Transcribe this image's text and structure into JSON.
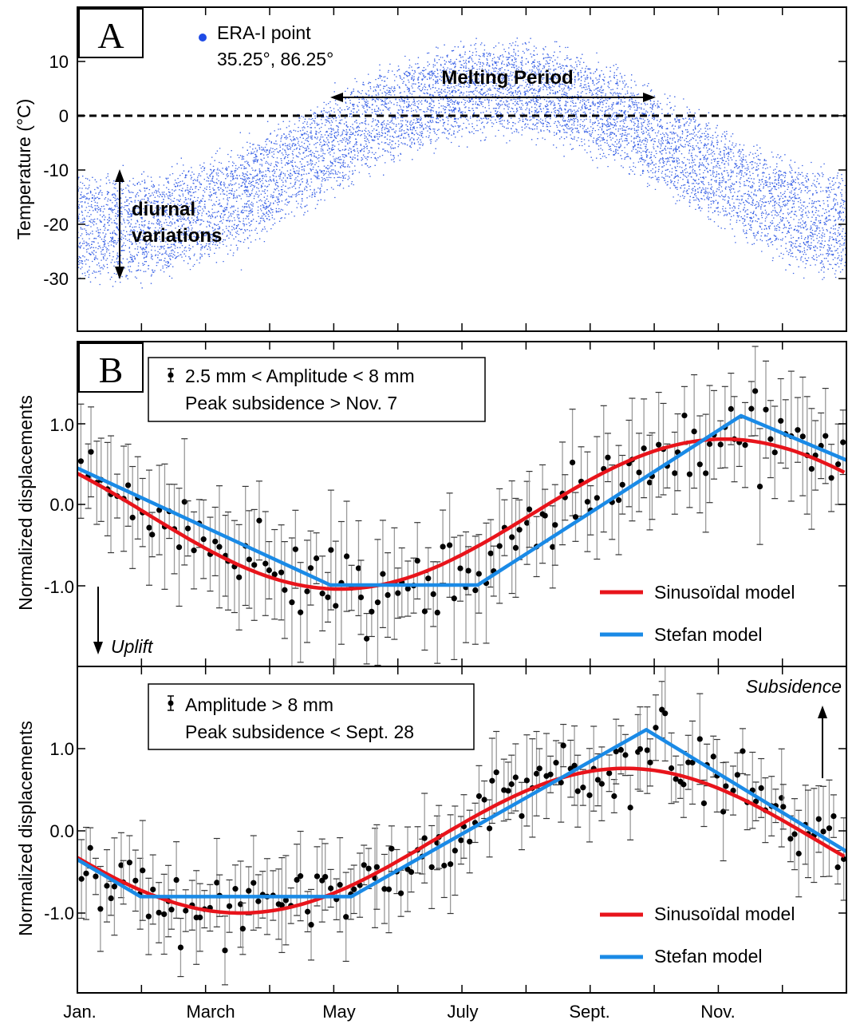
{
  "colors": {
    "scatter": "#3b63e6",
    "sinusoidal": "#e8141b",
    "stefan": "#1a8ae6",
    "errorbar": "#9a9a9a",
    "point": "#000000"
  },
  "months": [
    "Jan.",
    "March",
    "May",
    "July",
    "Sept.",
    "Nov."
  ],
  "panelA": {
    "letter": "A",
    "ylabel": "Temperature (°C)",
    "yticks": [
      "10",
      "0",
      "-10",
      "-20",
      "-30"
    ],
    "legend_line1": "ERA-I point",
    "legend_line2": "35.25°, 86.25°",
    "melting_label": "Melting Period",
    "diurnal_line1": "diurnal",
    "diurnal_line2": "variations"
  },
  "panelB1": {
    "letter": "B",
    "ylabel": "Normalized displacements",
    "yticks": [
      "1.0",
      "0.0",
      "-1.0"
    ],
    "legend_line1": "2.5 mm < Amplitude < 8 mm",
    "legend_line2": "Peak subsidence > Nov. 7",
    "model1": "Sinusoïdal model",
    "model2": "Stefan model",
    "uplift": "Uplift"
  },
  "panelB2": {
    "ylabel": "Normalized displacements",
    "yticks": [
      "1.0",
      "0.0",
      "-1.0"
    ],
    "legend_line1": "Amplitude > 8 mm",
    "legend_line2": "Peak subsidence < Sept. 28",
    "model1": "Sinusoïdal model",
    "model2": "Stefan model",
    "subsidence": "Subsidence"
  },
  "chart_data": [
    {
      "type": "scatter",
      "ylabel": "Temperature (°C)",
      "x_range_days": [
        0,
        365
      ],
      "ylim": [
        -38,
        19
      ],
      "reference_line_y": 0,
      "melting_period_days": [
        120,
        275
      ],
      "temperature_model": {
        "mean": -8,
        "amplitude": 13,
        "peak_day": 200,
        "diurnal_halfwidth_winter": 8,
        "diurnal_halfwidth_summer": 7
      }
    },
    {
      "type": "scatter",
      "ylabel": "Normalized displacements",
      "ylim": [
        -1.9,
        2.0
      ],
      "sinusoidal": {
        "mean": -0.12,
        "amplitude": 0.93,
        "peak_day": 307
      },
      "stefan_knots": [
        [
          0,
          0.45
        ],
        [
          120,
          -1.0
        ],
        [
          190,
          -1.0
        ],
        [
          315,
          1.1
        ],
        [
          365,
          0.55
        ]
      ],
      "error_halfwidth": 0.6
    },
    {
      "type": "scatter",
      "ylabel": "Normalized displacements",
      "ylim": [
        -1.9,
        2.0
      ],
      "sinusoidal": {
        "mean": -0.12,
        "amplitude": 0.88,
        "peak_day": 260
      },
      "stefan_knots": [
        [
          0,
          -0.35
        ],
        [
          30,
          -0.8
        ],
        [
          130,
          -0.8
        ],
        [
          270,
          1.23
        ],
        [
          365,
          -0.25
        ]
      ],
      "error_halfwidth": 0.45
    }
  ]
}
